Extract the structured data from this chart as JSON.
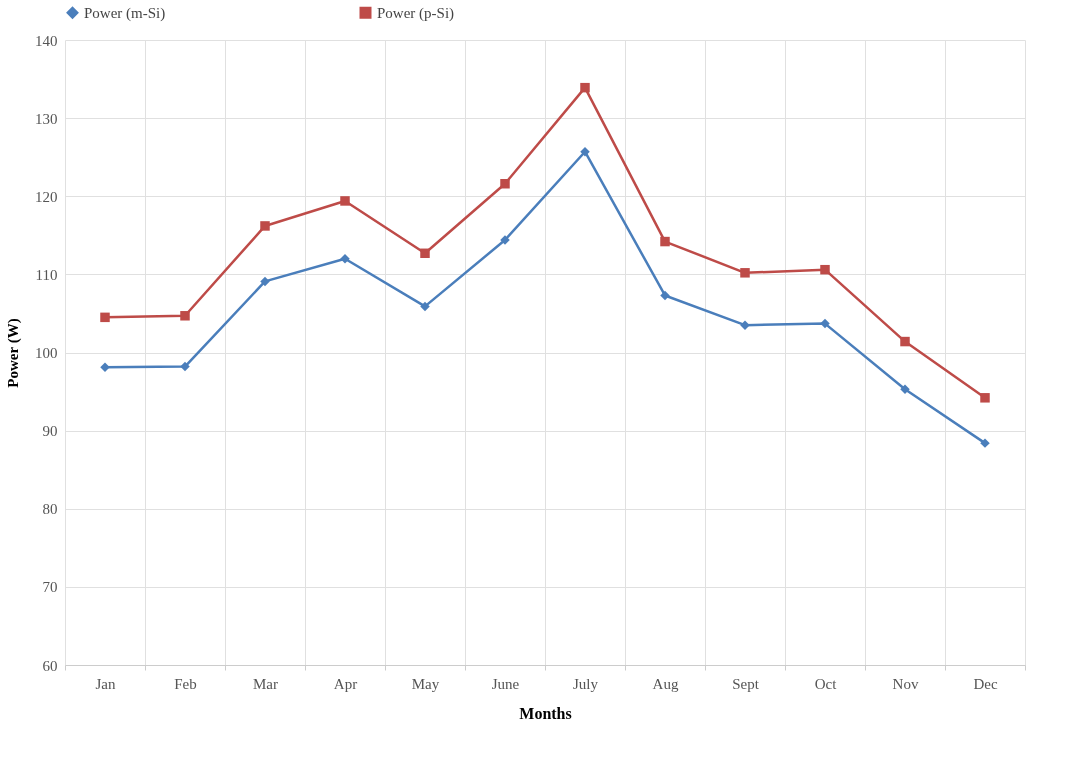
{
  "chart_data": {
    "type": "line",
    "xlabel": "Months",
    "ylabel": "Power (W)",
    "categories": [
      "Jan",
      "Feb",
      "Mar",
      "Apr",
      "May",
      "June",
      "July",
      "Aug",
      "Sept",
      "Oct",
      "Nov",
      "Dec"
    ],
    "series": [
      {
        "name": "Power (m-Si)",
        "color": "#4a7ebb",
        "marker": "diamond",
        "values": [
          98.1,
          98.2,
          109.1,
          112.0,
          105.9,
          114.4,
          125.7,
          107.3,
          103.5,
          103.7,
          95.3,
          88.4
        ]
      },
      {
        "name": "Power (p-Si)",
        "color": "#be4b48",
        "marker": "square",
        "values": [
          104.5,
          104.7,
          116.2,
          119.4,
          112.7,
          121.6,
          133.9,
          114.2,
          110.2,
          110.6,
          101.4,
          94.2
        ]
      }
    ],
    "ylim": [
      60,
      140
    ],
    "yticks": [
      60,
      70,
      80,
      90,
      100,
      110,
      120,
      130,
      140
    ],
    "grid": true,
    "legend": "top"
  }
}
